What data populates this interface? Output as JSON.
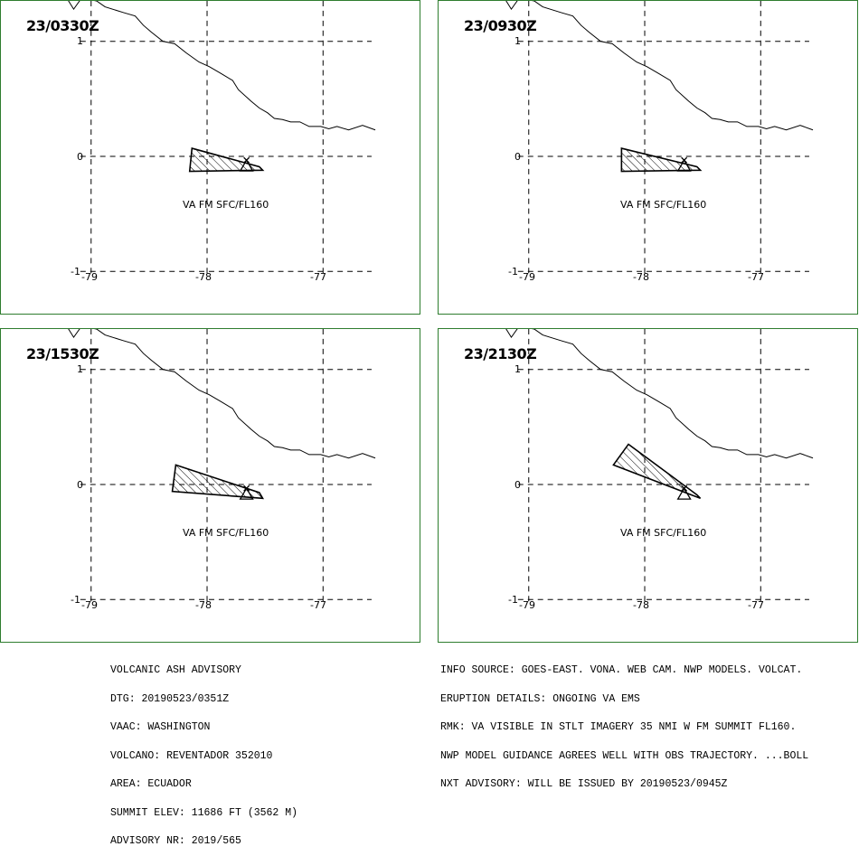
{
  "panels": [
    {
      "time": "23/0330Z",
      "label": "VA FM SFC/FL160",
      "y_ticks": [
        "1",
        "0",
        "-1"
      ],
      "x_ticks": [
        "-79",
        "-78",
        "-77"
      ],
      "ash_polygon": [
        [
          -78.13,
          0.07
        ],
        [
          -77.55,
          -0.09
        ],
        [
          -77.52,
          -0.12
        ],
        [
          -78.15,
          -0.13
        ]
      ]
    },
    {
      "time": "23/0930Z",
      "label": "VA FM SFC/FL160",
      "y_ticks": [
        "1",
        "0",
        "-1"
      ],
      "x_ticks": [
        "-79",
        "-78",
        "-77"
      ],
      "ash_polygon": [
        [
          -78.2,
          0.07
        ],
        [
          -77.55,
          -0.09
        ],
        [
          -77.52,
          -0.12
        ],
        [
          -78.2,
          -0.13
        ]
      ]
    },
    {
      "time": "23/1530Z",
      "label": "VA FM SFC/FL160",
      "y_ticks": [
        "1",
        "0",
        "-1"
      ],
      "x_ticks": [
        "-79",
        "-78",
        "-77"
      ],
      "ash_polygon": [
        [
          -78.27,
          0.17
        ],
        [
          -77.55,
          -0.07
        ],
        [
          -77.52,
          -0.12
        ],
        [
          -78.3,
          -0.06
        ]
      ]
    },
    {
      "time": "23/2130Z",
      "label": "VA FM SFC/FL160",
      "y_ticks": [
        "1",
        "0",
        "-1"
      ],
      "x_ticks": [
        "-79",
        "-78",
        "-77"
      ],
      "ash_polygon": [
        [
          -78.14,
          0.35
        ],
        [
          -77.55,
          -0.09
        ],
        [
          -77.52,
          -0.12
        ],
        [
          -78.27,
          0.17
        ]
      ]
    }
  ],
  "volcano": {
    "lon": -77.66,
    "lat": -0.08
  },
  "coastline": [
    [
      -79.2,
      1.36
    ],
    [
      -79.15,
      1.28
    ],
    [
      -79.08,
      1.38
    ],
    [
      -78.95,
      1.35
    ],
    [
      -78.88,
      1.3
    ],
    [
      -78.72,
      1.25
    ],
    [
      -78.62,
      1.22
    ],
    [
      -78.55,
      1.14
    ],
    [
      -78.48,
      1.08
    ],
    [
      -78.38,
      1.0
    ],
    [
      -78.28,
      0.98
    ],
    [
      -78.18,
      0.9
    ],
    [
      -78.07,
      0.82
    ],
    [
      -77.98,
      0.78
    ],
    [
      -77.88,
      0.72
    ],
    [
      -77.78,
      0.66
    ],
    [
      -77.73,
      0.58
    ],
    [
      -77.62,
      0.48
    ],
    [
      -77.55,
      0.42
    ],
    [
      -77.48,
      0.38
    ],
    [
      -77.42,
      0.33
    ],
    [
      -77.35,
      0.32
    ],
    [
      -77.28,
      0.3
    ],
    [
      -77.2,
      0.3
    ],
    [
      -77.12,
      0.26
    ],
    [
      -77.02,
      0.26
    ],
    [
      -76.95,
      0.24
    ],
    [
      -76.88,
      0.26
    ],
    [
      -76.78,
      0.23
    ],
    [
      -76.66,
      0.27
    ],
    [
      -76.55,
      0.23
    ]
  ],
  "advisory_left": [
    "VOLCANIC ASH ADVISORY",
    "DTG: 20190523/0351Z",
    "VAAC: WASHINGTON",
    "VOLCANO: REVENTADOR 352010",
    "AREA: ECUADOR",
    "SUMMIT ELEV: 11686 FT (3562 M)",
    "ADVISORY NR: 2019/565"
  ],
  "advisory_right": [
    "INFO SOURCE: GOES-EAST. VONA. WEB CAM. NWP MODELS. VOLCAT.",
    "ERUPTION DETAILS: ONGOING VA EMS",
    "RMK: VA VISIBLE IN STLT IMAGERY 35 NMI W FM SUMMIT FL160.",
    "NWP MODEL GUIDANCE AGREES WELL WITH OBS TRAJECTORY. ...BOLL",
    "NXT ADVISORY: WILL BE ISSUED BY 20190523/0945Z"
  ],
  "colors": {
    "frame": "#2e7d2e",
    "lines": "#000000"
  }
}
